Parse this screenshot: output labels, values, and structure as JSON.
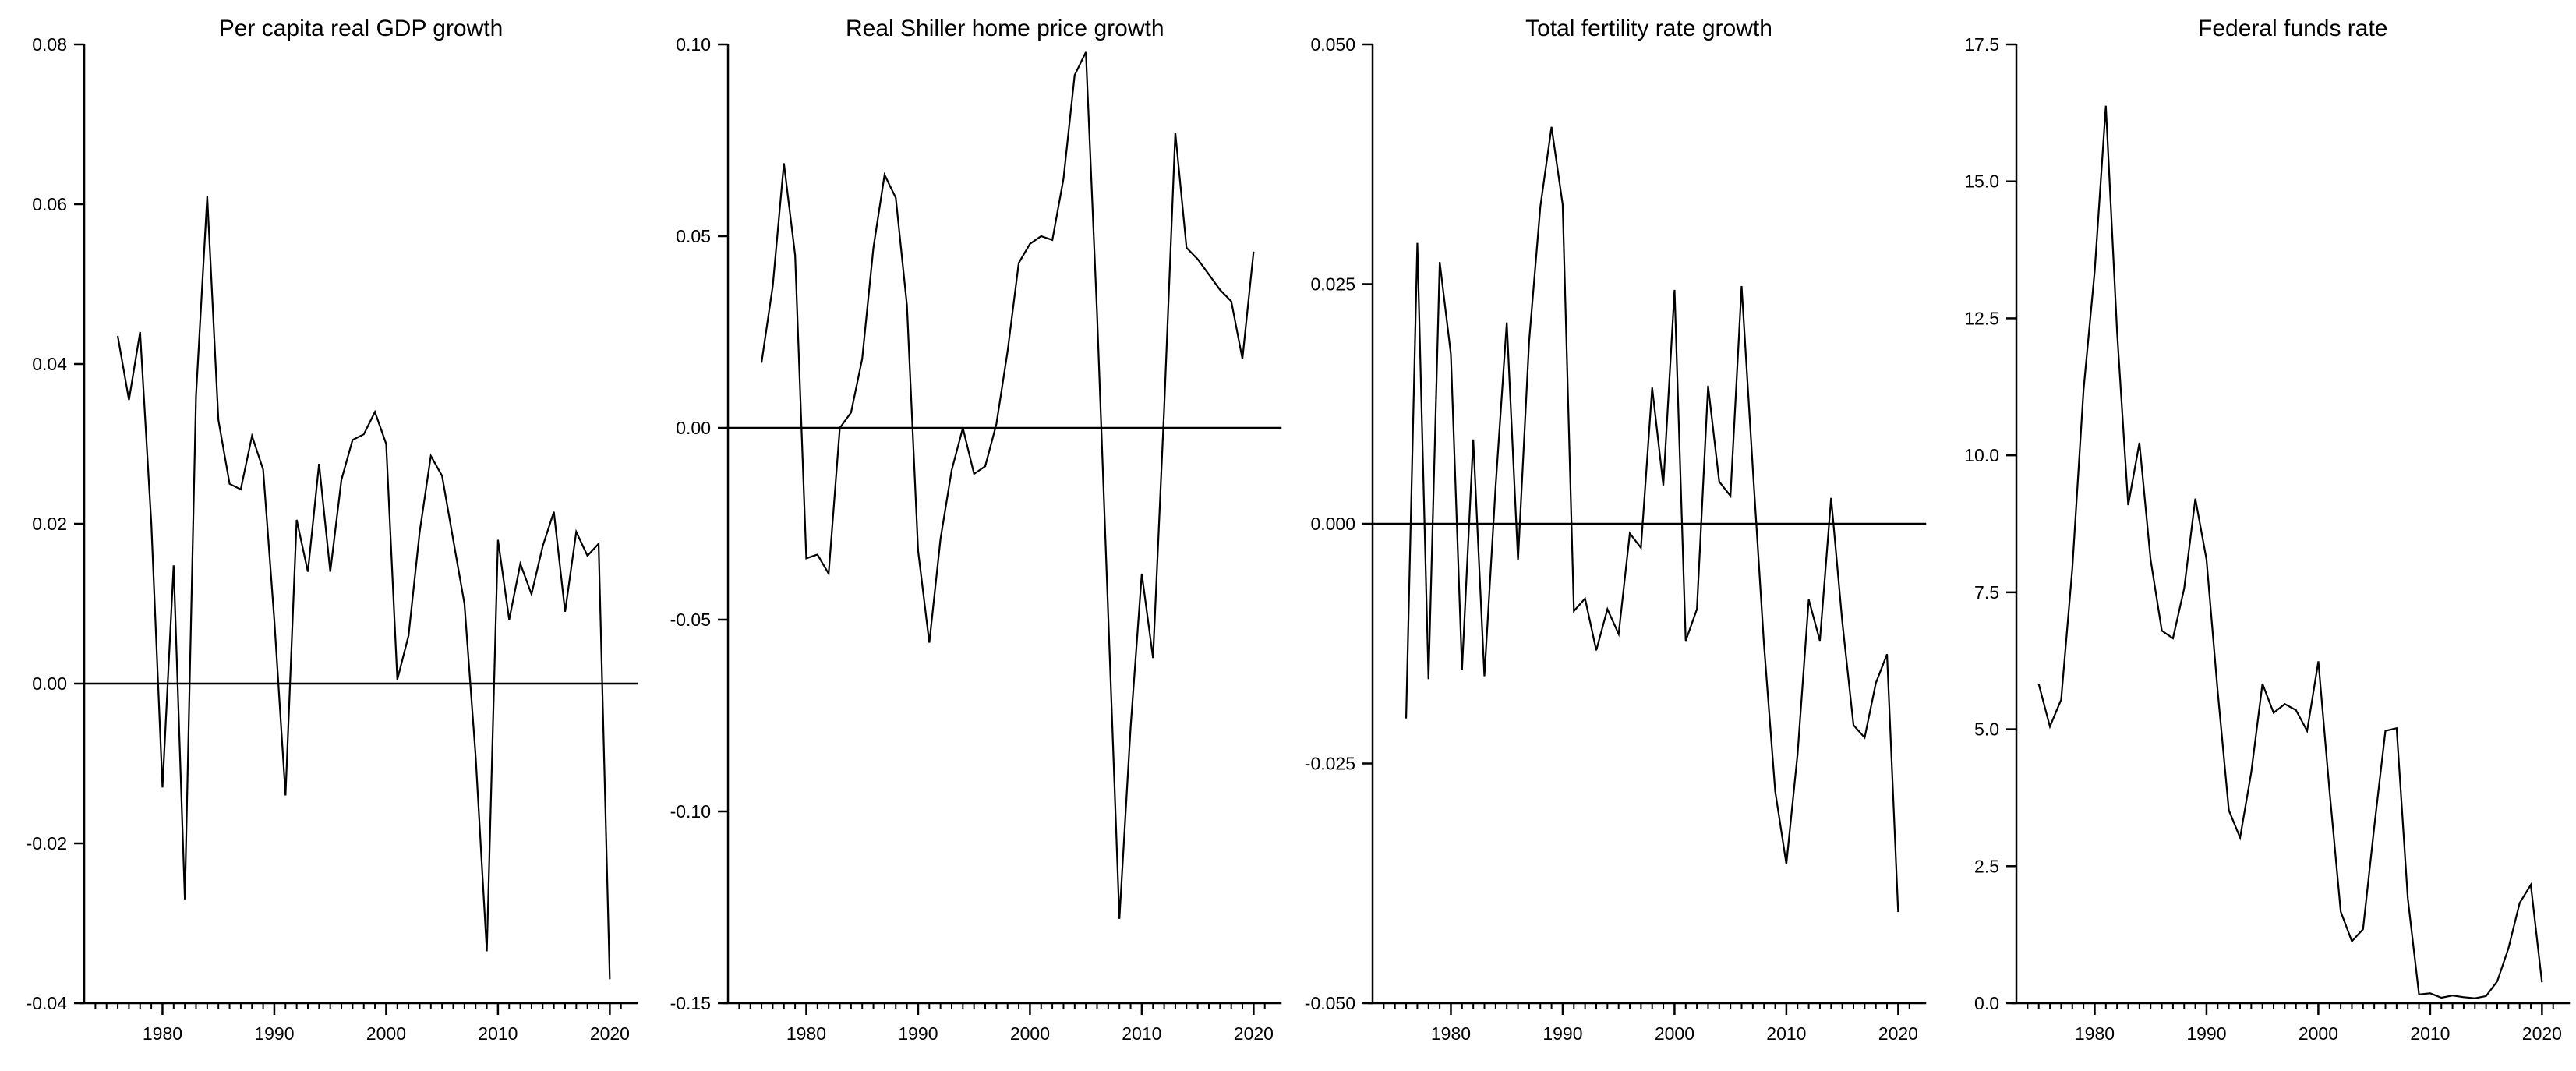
{
  "figure": {
    "background": "#ffffff",
    "line_color": "#000000",
    "text_color": "#000000"
  },
  "chart_data": {
    "type": "line",
    "layout": "four-panel-row",
    "x_axis": {
      "tick_labels": [
        "1980",
        "1990",
        "2000",
        "2010",
        "2020"
      ],
      "tick_values": [
        1980,
        1990,
        2000,
        2010,
        2020
      ],
      "minor_tick_start": 1974,
      "minor_tick_end": 2021,
      "xlim": [
        1973.0,
        2022.5
      ]
    },
    "charts": [
      {
        "title": "Per capita real GDP growth",
        "zero_line": true,
        "ylim": [
          -0.04,
          0.08
        ],
        "y_ticks": [
          {
            "value": -0.04,
            "label": "-0.04"
          },
          {
            "value": -0.02,
            "label": "-0.02"
          },
          {
            "value": 0.0,
            "label": "0.00"
          },
          {
            "value": 0.02,
            "label": "0.02"
          },
          {
            "value": 0.04,
            "label": "0.04"
          },
          {
            "value": 0.06,
            "label": "0.06"
          },
          {
            "value": 0.08,
            "label": "0.08"
          }
        ],
        "start_year": 1976,
        "years": [
          1976,
          1977,
          1978,
          1979,
          1980,
          1981,
          1982,
          1983,
          1984,
          1985,
          1986,
          1987,
          1988,
          1989,
          1990,
          1991,
          1992,
          1993,
          1994,
          1995,
          1996,
          1997,
          1998,
          1999,
          2000,
          2001,
          2002,
          2003,
          2004,
          2005,
          2006,
          2007,
          2008,
          2009,
          2010,
          2011,
          2012,
          2013,
          2014,
          2015,
          2016,
          2017,
          2018,
          2019,
          2020
        ],
        "values": [
          0.0435,
          0.0355,
          0.044,
          0.02,
          -0.013,
          0.0148,
          -0.027,
          0.036,
          0.061,
          0.033,
          0.025,
          0.0243,
          0.031,
          0.0268,
          0.008,
          -0.014,
          0.0205,
          0.014,
          0.0275,
          0.014,
          0.0255,
          0.0305,
          0.0312,
          0.034,
          0.03,
          0.0005,
          0.006,
          0.019,
          0.0285,
          0.026,
          0.018,
          0.01,
          -0.009,
          -0.0335,
          0.018,
          0.008,
          0.015,
          0.0112,
          0.0172,
          0.0215,
          0.009,
          0.019,
          0.016,
          0.0175,
          -0.037
        ]
      },
      {
        "title": "Real Shiller home price growth",
        "zero_line": true,
        "ylim": [
          -0.15,
          0.1
        ],
        "y_ticks": [
          {
            "value": -0.15,
            "label": "-0.15"
          },
          {
            "value": -0.1,
            "label": "-0.10"
          },
          {
            "value": -0.05,
            "label": "-0.05"
          },
          {
            "value": 0.0,
            "label": "0.00"
          },
          {
            "value": 0.05,
            "label": "0.05"
          },
          {
            "value": 0.1,
            "label": "0.10"
          }
        ],
        "start_year": 1976,
        "years": [
          1976,
          1977,
          1978,
          1979,
          1980,
          1981,
          1982,
          1983,
          1984,
          1985,
          1986,
          1987,
          1988,
          1989,
          1990,
          1991,
          1992,
          1993,
          1994,
          1995,
          1996,
          1997,
          1998,
          1999,
          2000,
          2001,
          2002,
          2003,
          2004,
          2005,
          2006,
          2007,
          2008,
          2009,
          2010,
          2011,
          2012,
          2013,
          2014,
          2015,
          2016,
          2017,
          2018,
          2019,
          2020
        ],
        "values": [
          0.017,
          0.037,
          0.069,
          0.045,
          -0.034,
          -0.033,
          -0.038,
          0.0,
          0.004,
          0.018,
          0.047,
          0.066,
          0.06,
          0.032,
          -0.032,
          -0.056,
          -0.029,
          -0.011,
          0.0,
          -0.012,
          -0.01,
          0.001,
          0.02,
          0.043,
          0.048,
          0.05,
          0.049,
          0.065,
          0.092,
          0.098,
          0.03,
          -0.049,
          -0.128,
          -0.078,
          -0.038,
          -0.06,
          0.005,
          0.077,
          0.047,
          0.044,
          0.04,
          0.036,
          0.033,
          0.018,
          0.046
        ]
      },
      {
        "title": "Total fertility rate growth",
        "zero_line": true,
        "ylim": [
          -0.05,
          0.05
        ],
        "y_ticks": [
          {
            "value": -0.05,
            "label": "-0.050"
          },
          {
            "value": -0.025,
            "label": "-0.025"
          },
          {
            "value": 0.0,
            "label": "0.000"
          },
          {
            "value": 0.025,
            "label": "0.025"
          },
          {
            "value": 0.05,
            "label": "0.050"
          }
        ],
        "start_year": 1976,
        "years": [
          1976,
          1977,
          1978,
          1979,
          1980,
          1981,
          1982,
          1983,
          1984,
          1985,
          1986,
          1987,
          1988,
          1989,
          1990,
          1991,
          1992,
          1993,
          1994,
          1995,
          1996,
          1997,
          1998,
          1999,
          2000,
          2001,
          2002,
          2003,
          2004,
          2005,
          2006,
          2007,
          2008,
          2009,
          2010,
          2011,
          2012,
          2013,
          2014,
          2015,
          2016,
          2017,
          2018,
          2019,
          2020
        ],
        "values": [
          -0.0203,
          0.0293,
          -0.0162,
          0.0273,
          0.0177,
          -0.0152,
          0.0088,
          -0.0159,
          0.0039,
          0.021,
          -0.0038,
          0.0191,
          0.0331,
          0.0414,
          0.0333,
          -0.0091,
          -0.0078,
          -0.0132,
          -0.0089,
          -0.0115,
          -0.001,
          -0.0025,
          0.0142,
          0.004,
          0.0244,
          -0.0122,
          -0.0089,
          0.0144,
          0.0044,
          0.0029,
          0.0248,
          0.0057,
          -0.0126,
          -0.0279,
          -0.0355,
          -0.024,
          -0.0079,
          -0.0122,
          0.0027,
          -0.0102,
          -0.021,
          -0.0223,
          -0.0166,
          -0.0136,
          -0.0405
        ]
      },
      {
        "title": "Federal funds rate",
        "zero_line": false,
        "ylim": [
          0.0,
          17.5
        ],
        "y_ticks": [
          {
            "value": 0.0,
            "label": "0.0"
          },
          {
            "value": 2.5,
            "label": "2.5"
          },
          {
            "value": 5.0,
            "label": "5.0"
          },
          {
            "value": 7.5,
            "label": "7.5"
          },
          {
            "value": 10.0,
            "label": "10.0"
          },
          {
            "value": 12.5,
            "label": "12.5"
          },
          {
            "value": 15.0,
            "label": "15.0"
          },
          {
            "value": 17.5,
            "label": "17.5"
          }
        ],
        "start_year": 1975,
        "years": [
          1975,
          1976,
          1977,
          1978,
          1979,
          1980,
          1981,
          1982,
          1983,
          1984,
          1985,
          1986,
          1987,
          1988,
          1989,
          1990,
          1991,
          1992,
          1993,
          1994,
          1995,
          1996,
          1997,
          1998,
          1999,
          2000,
          2001,
          2002,
          2003,
          2004,
          2005,
          2006,
          2007,
          2008,
          2009,
          2010,
          2011,
          2012,
          2013,
          2014,
          2015,
          2016,
          2017,
          2018,
          2019,
          2020
        ],
        "values": [
          5.82,
          5.05,
          5.54,
          7.93,
          11.19,
          13.36,
          16.38,
          12.26,
          9.09,
          10.23,
          8.1,
          6.8,
          6.66,
          7.57,
          9.21,
          8.1,
          5.69,
          3.52,
          3.02,
          4.21,
          5.83,
          5.3,
          5.46,
          5.35,
          4.97,
          6.24,
          3.88,
          1.67,
          1.13,
          1.35,
          3.22,
          4.97,
          5.02,
          1.92,
          0.16,
          0.18,
          0.1,
          0.14,
          0.11,
          0.09,
          0.13,
          0.4,
          1.0,
          1.83,
          2.16,
          0.38
        ]
      }
    ]
  }
}
